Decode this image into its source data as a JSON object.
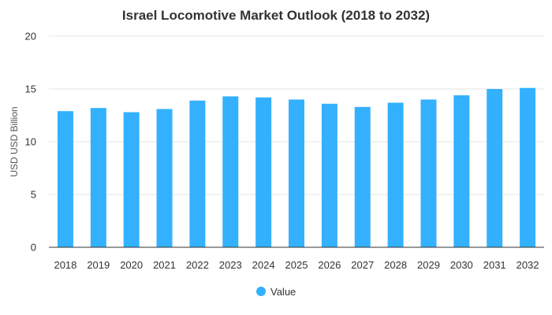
{
  "chart_data": {
    "type": "bar",
    "title": "Israel Locomotive Market Outlook (2018 to 2032)",
    "xlabel": "",
    "ylabel": "USD USD Billion",
    "categories": [
      "2018",
      "2019",
      "2020",
      "2021",
      "2022",
      "2023",
      "2024",
      "2025",
      "2026",
      "2027",
      "2028",
      "2029",
      "2030",
      "2031",
      "2032"
    ],
    "series": [
      {
        "name": "Value",
        "values": [
          12.9,
          13.2,
          12.8,
          13.1,
          13.9,
          14.3,
          14.2,
          14.0,
          13.6,
          13.3,
          13.7,
          14.0,
          14.4,
          15.0,
          15.1
        ],
        "color": "#33b1ff"
      }
    ],
    "ylim": [
      0,
      20
    ],
    "yticks": [
      0,
      5,
      10,
      15,
      20
    ],
    "grid": true,
    "legend_position": "bottom-center"
  }
}
